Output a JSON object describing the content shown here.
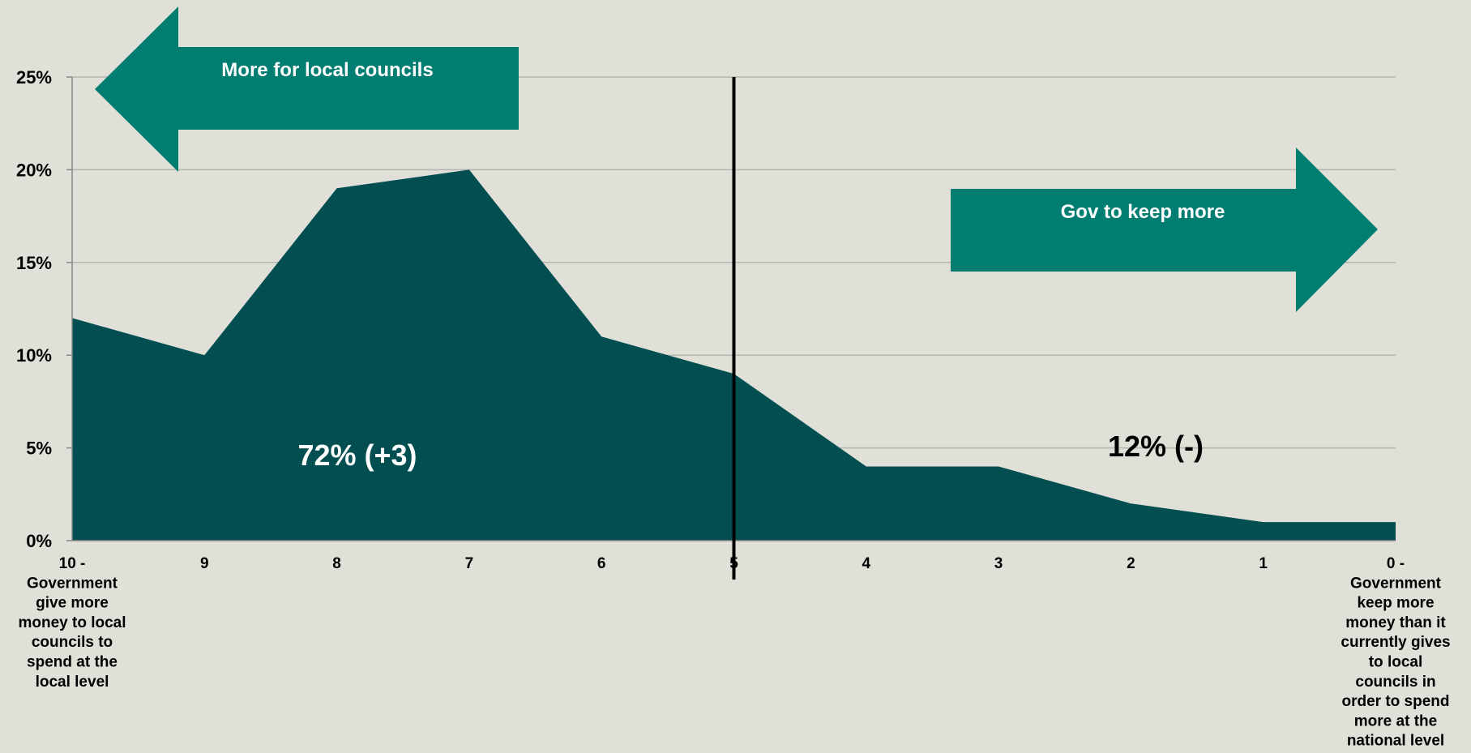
{
  "colors": {
    "background": "#e0e0d9",
    "area_fill": "#034e50",
    "arrow_fill": "#027d72",
    "gridline": "#b5b5b0",
    "axis_text": "#000000",
    "arrow_text": "#ffffff",
    "divider": "#000000"
  },
  "annotations": {
    "left_arrow_label": "More for local councils",
    "right_arrow_label": "Gov to keep more",
    "left_share": "72% (+3)",
    "right_share": "12% (-)"
  },
  "chart_data": {
    "type": "area",
    "title": "",
    "xlabel": "",
    "ylabel": "",
    "categories": [
      "10 - Government give more money to local councils to spend at the local level",
      "9",
      "8",
      "7",
      "6",
      "5",
      "4",
      "3",
      "2",
      "1",
      "0 - Government keep more money than it currently gives to local councils in order to spend more at the national level"
    ],
    "category_lines": [
      [
        "10 -",
        "Government",
        "give more",
        "money to local",
        "councils to",
        "spend at the",
        "local level"
      ],
      [
        "9"
      ],
      [
        "8"
      ],
      [
        "7"
      ],
      [
        "6"
      ],
      [
        "5"
      ],
      [
        "4"
      ],
      [
        "3"
      ],
      [
        "2"
      ],
      [
        "1"
      ],
      [
        "0 -",
        "Government",
        "keep more",
        "money than it",
        "currently gives",
        "to local",
        "councils in",
        "order to spend",
        "more at the",
        "national level"
      ]
    ],
    "series": [
      {
        "values": [
          12,
          10,
          19,
          20,
          11,
          9,
          4,
          4,
          2,
          1,
          1
        ]
      }
    ],
    "ylim": [
      0,
      25
    ],
    "yticks": [
      "0%",
      "5%",
      "10%",
      "15%",
      "20%",
      "25%"
    ],
    "ytick_values": [
      0,
      5,
      10,
      15,
      20,
      25
    ],
    "grid": true,
    "divider_at": "5"
  }
}
